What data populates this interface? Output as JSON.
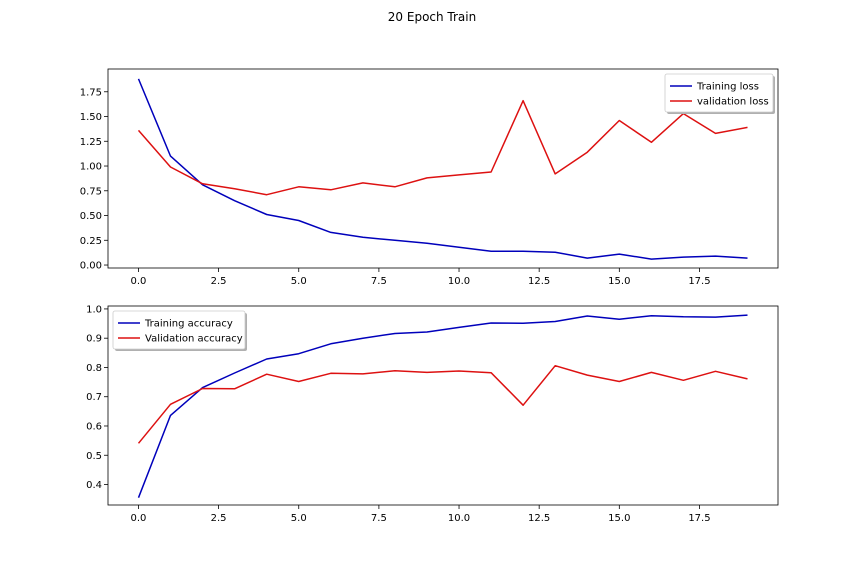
{
  "figure": {
    "title": "20 Epoch Train"
  },
  "chart_data": [
    {
      "type": "line",
      "x": [
        0,
        1,
        2,
        3,
        4,
        5,
        6,
        7,
        8,
        9,
        10,
        11,
        12,
        13,
        14,
        15,
        16,
        17,
        18,
        19
      ],
      "xlim": [
        -0.95,
        19.95
      ],
      "ylim": [
        -0.03,
        1.98
      ],
      "xticks": [
        0.0,
        2.5,
        5.0,
        7.5,
        10.0,
        12.5,
        15.0,
        17.5
      ],
      "xtick_labels": [
        "0.0",
        "2.5",
        "5.0",
        "7.5",
        "10.0",
        "12.5",
        "15.0",
        "17.5"
      ],
      "yticks": [
        0.0,
        0.25,
        0.5,
        0.75,
        1.0,
        1.25,
        1.5,
        1.75
      ],
      "ytick_labels": [
        "0.00",
        "0.25",
        "0.50",
        "0.75",
        "1.00",
        "1.25",
        "1.50",
        "1.75"
      ],
      "grid": false,
      "legend": "upper right",
      "series": [
        {
          "name": "Training loss",
          "color": "#0000bb",
          "values": [
            1.88,
            1.1,
            0.81,
            0.65,
            0.51,
            0.45,
            0.33,
            0.28,
            0.25,
            0.22,
            0.18,
            0.14,
            0.14,
            0.13,
            0.07,
            0.11,
            0.06,
            0.08,
            0.09,
            0.07
          ]
        },
        {
          "name": "validation loss",
          "color": "#dd1111",
          "values": [
            1.36,
            0.99,
            0.82,
            0.77,
            0.71,
            0.79,
            0.76,
            0.83,
            0.79,
            0.88,
            0.91,
            0.94,
            1.66,
            0.92,
            1.14,
            1.46,
            1.24,
            1.53,
            1.33,
            1.39
          ]
        }
      ]
    },
    {
      "type": "line",
      "x": [
        0,
        1,
        2,
        3,
        4,
        5,
        6,
        7,
        8,
        9,
        10,
        11,
        12,
        13,
        14,
        15,
        16,
        17,
        18,
        19
      ],
      "xlim": [
        -0.95,
        19.95
      ],
      "ylim": [
        0.33,
        1.01
      ],
      "xticks": [
        0.0,
        2.5,
        5.0,
        7.5,
        10.0,
        12.5,
        15.0,
        17.5
      ],
      "xtick_labels": [
        "0.0",
        "2.5",
        "5.0",
        "7.5",
        "10.0",
        "12.5",
        "15.0",
        "17.5"
      ],
      "yticks": [
        0.4,
        0.5,
        0.6,
        0.7,
        0.8,
        0.9,
        1.0
      ],
      "ytick_labels": [
        "0.4",
        "0.5",
        "0.6",
        "0.7",
        "0.8",
        "0.9",
        "1.0"
      ],
      "grid": false,
      "legend": "upper left",
      "series": [
        {
          "name": "Training accuracy",
          "color": "#0000bb",
          "values": [
            0.355,
            0.636,
            0.731,
            0.781,
            0.829,
            0.847,
            0.881,
            0.9,
            0.916,
            0.921,
            0.937,
            0.952,
            0.951,
            0.957,
            0.976,
            0.965,
            0.977,
            0.973,
            0.972,
            0.979
          ]
        },
        {
          "name": "Validation accuracy",
          "color": "#dd1111",
          "values": [
            0.541,
            0.674,
            0.728,
            0.727,
            0.777,
            0.752,
            0.78,
            0.778,
            0.789,
            0.783,
            0.788,
            0.782,
            0.671,
            0.806,
            0.774,
            0.752,
            0.783,
            0.756,
            0.787,
            0.761
          ]
        }
      ]
    }
  ]
}
